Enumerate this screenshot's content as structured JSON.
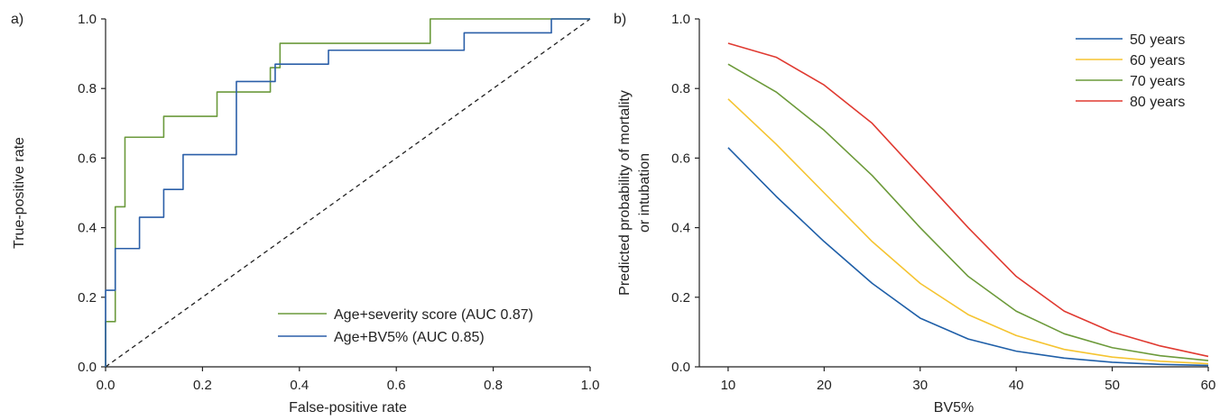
{
  "chart_data": [
    {
      "type": "line",
      "panel_label": "a)",
      "xlabel": "False-positive rate",
      "ylabel": "True-positive rate",
      "xlim": [
        0,
        1
      ],
      "ylim": [
        0,
        1
      ],
      "xticks": [
        "0.0",
        "0.2",
        "0.4",
        "0.6",
        "0.8",
        "1.0"
      ],
      "yticks": [
        "0.0",
        "0.2",
        "0.4",
        "0.6",
        "0.8",
        "1.0"
      ],
      "grid": false,
      "legend_position": "bottom-right",
      "reference_line": {
        "style": "dashed",
        "color": "#222222",
        "x": [
          0,
          1
        ],
        "y": [
          0,
          1
        ]
      },
      "series": [
        {
          "name": "Age+severity score (AUC 0.87)",
          "color": "#6b9a3c",
          "x": [
            0,
            0,
            0.02,
            0.02,
            0.04,
            0.04,
            0.12,
            0.12,
            0.23,
            0.23,
            0.34,
            0.34,
            0.36,
            0.36,
            0.67,
            0.67,
            0.92,
            0.92,
            1.0
          ],
          "y": [
            0,
            0.13,
            0.13,
            0.46,
            0.46,
            0.66,
            0.66,
            0.72,
            0.72,
            0.79,
            0.79,
            0.86,
            0.86,
            0.93,
            0.93,
            1.0,
            1.0,
            1.0,
            1.0
          ]
        },
        {
          "name": "Age+BV5% (AUC 0.85)",
          "color": "#2b5fa8",
          "x": [
            0,
            0,
            0.02,
            0.02,
            0.07,
            0.07,
            0.12,
            0.12,
            0.16,
            0.16,
            0.27,
            0.27,
            0.35,
            0.35,
            0.46,
            0.46,
            0.74,
            0.74,
            0.92,
            0.92,
            1.0
          ],
          "y": [
            0,
            0.22,
            0.22,
            0.34,
            0.34,
            0.43,
            0.43,
            0.51,
            0.51,
            0.61,
            0.61,
            0.82,
            0.82,
            0.87,
            0.87,
            0.91,
            0.91,
            0.96,
            0.96,
            1.0,
            1.0
          ]
        }
      ]
    },
    {
      "type": "line",
      "panel_label": "b)",
      "xlabel": "BV5%",
      "ylabel_lines": [
        "Predicted probability of mortality",
        "or intubation"
      ],
      "xlim": [
        7,
        60
      ],
      "ylim": [
        0,
        1
      ],
      "xticks": [
        "10",
        "20",
        "30",
        "40",
        "50",
        "60"
      ],
      "yticks": [
        "0.0",
        "0.2",
        "0.4",
        "0.6",
        "0.8",
        "1.0"
      ],
      "grid": false,
      "legend_position": "top-right",
      "series": [
        {
          "name": "50 years",
          "color": "#1f5fa8",
          "x": [
            10,
            15,
            20,
            25,
            30,
            35,
            40,
            45,
            50,
            55,
            60
          ],
          "y": [
            0.63,
            0.49,
            0.36,
            0.24,
            0.14,
            0.08,
            0.045,
            0.025,
            0.013,
            0.007,
            0.004
          ]
        },
        {
          "name": "60 years",
          "color": "#f5c431",
          "x": [
            10,
            15,
            20,
            25,
            30,
            35,
            40,
            45,
            50,
            55,
            60
          ],
          "y": [
            0.77,
            0.64,
            0.5,
            0.36,
            0.24,
            0.15,
            0.09,
            0.05,
            0.028,
            0.016,
            0.009
          ]
        },
        {
          "name": "70 years",
          "color": "#6c9a3a",
          "x": [
            10,
            15,
            20,
            25,
            30,
            35,
            40,
            45,
            50,
            55,
            60
          ],
          "y": [
            0.87,
            0.79,
            0.68,
            0.55,
            0.4,
            0.26,
            0.16,
            0.095,
            0.055,
            0.032,
            0.018
          ]
        },
        {
          "name": "80 years",
          "color": "#e03a31",
          "x": [
            10,
            15,
            20,
            25,
            30,
            35,
            40,
            45,
            50,
            55,
            60
          ],
          "y": [
            0.93,
            0.89,
            0.81,
            0.7,
            0.55,
            0.4,
            0.26,
            0.16,
            0.1,
            0.06,
            0.03
          ]
        }
      ]
    }
  ]
}
